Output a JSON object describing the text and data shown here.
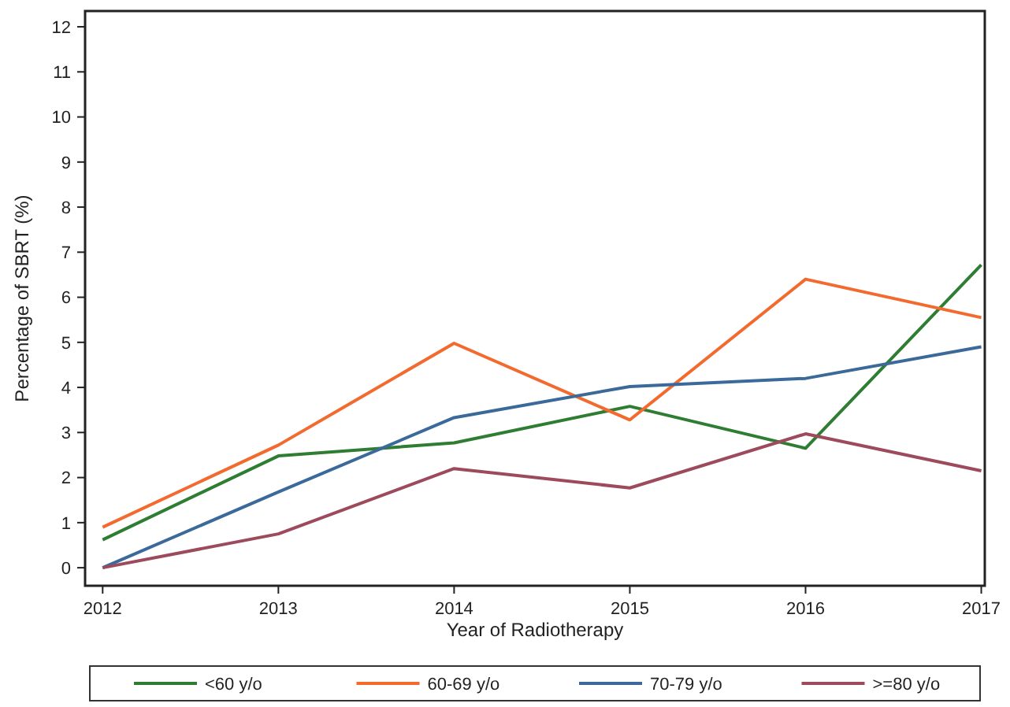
{
  "chart_data": {
    "type": "line",
    "xlabel": "Year of Radiotherapy",
    "ylabel": "Percentage of SBRT (%)",
    "x": [
      2012,
      2013,
      2014,
      2015,
      2016,
      2017
    ],
    "xlim": [
      2011.9,
      2017.02
    ],
    "xticks": [
      2012,
      2013,
      2014,
      2015,
      2016,
      2017
    ],
    "ylim": [
      -0.4,
      12.35
    ],
    "yticks": [
      0,
      1,
      2,
      3,
      4,
      5,
      6,
      7,
      8,
      9,
      10,
      11,
      12
    ],
    "grid": false,
    "legend": "bottom",
    "marker": "none",
    "line_style": "solid",
    "series": [
      {
        "name": "<60 y/o",
        "color": "#2e7d32",
        "values": [
          0.62,
          2.48,
          2.77,
          3.58,
          2.65,
          6.72
        ]
      },
      {
        "name": "60-69 y/o",
        "color": "#f26a2e",
        "values": [
          0.9,
          2.72,
          4.98,
          3.28,
          6.4,
          5.55
        ]
      },
      {
        "name": "70-79 y/o",
        "color": "#3b6a9a",
        "values": [
          0,
          1.68,
          3.33,
          4.02,
          4.2,
          4.9
        ]
      },
      {
        "name": ">=80 y/o",
        "color": "#9c4a5c",
        "values": [
          0,
          0.75,
          2.2,
          1.77,
          2.97,
          2.15
        ]
      }
    ]
  }
}
